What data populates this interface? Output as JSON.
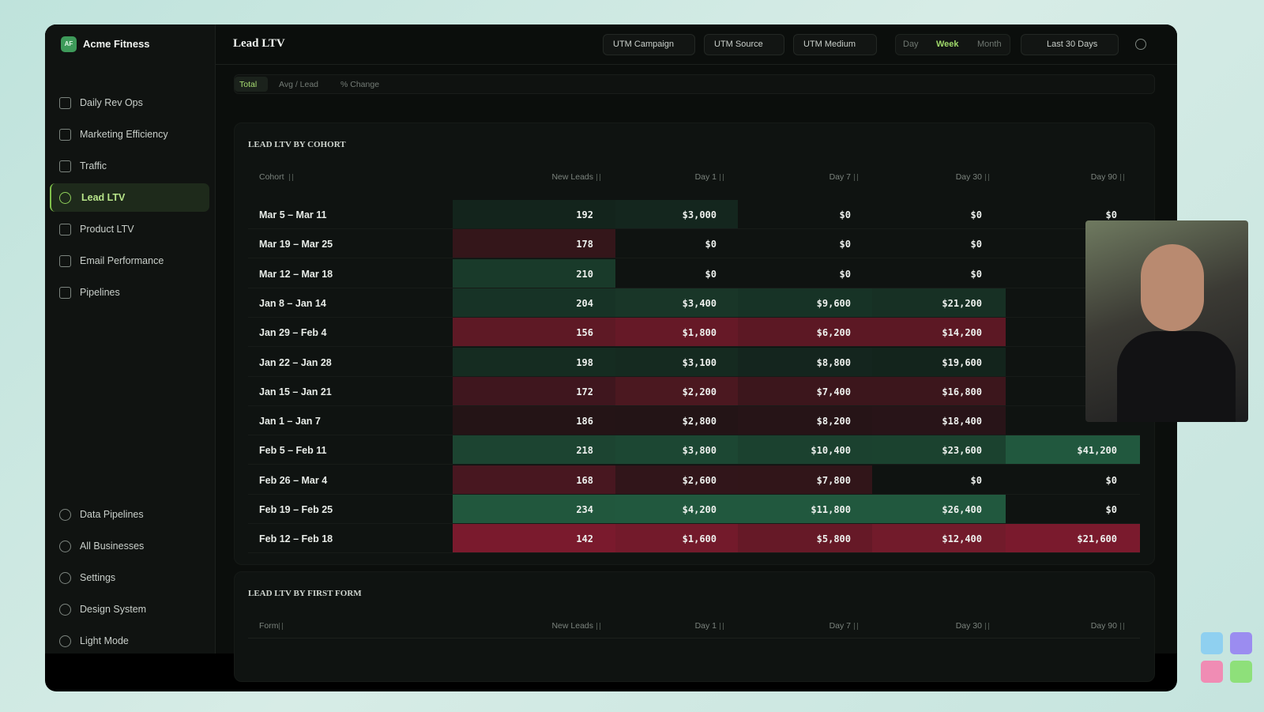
{
  "sidebar": {
    "brand_initials": "AF",
    "brand": "Acme Fitness",
    "nav": [
      "Daily Rev Ops",
      "Marketing Efficiency",
      "Traffic",
      "Lead LTV",
      "Product LTV",
      "Email Performance",
      "Pipelines"
    ],
    "active": 3,
    "footer_nav": [
      "Data Pipelines",
      "All Businesses",
      "Settings",
      "Design System",
      "Light Mode"
    ]
  },
  "header": {
    "title": "Lead LTV",
    "filters": [
      "UTM Campaign",
      "UTM Source",
      "UTM Medium"
    ],
    "periods": [
      "Day",
      "Week",
      "Month"
    ],
    "active_period": 1,
    "date_range": "Last 30 Days"
  },
  "tabs": {
    "items": [
      "Total",
      "Avg / Lead",
      "% Change"
    ],
    "active": 0
  },
  "cohort_table": {
    "title": "LEAD LTV BY COHORT",
    "columns": [
      "Cohort",
      "New Leads",
      "Day 1",
      "Day 7",
      "Day 30",
      "Day 90"
    ],
    "rows": [
      [
        "Mar 5 – Mar 11",
        "192",
        "$3,000",
        "$0",
        "$0",
        "$0"
      ],
      [
        "Mar 19 – Mar 25",
        "178",
        "$0",
        "$0",
        "$0",
        null
      ],
      [
        "Mar 12 – Mar 18",
        "210",
        "$0",
        "$0",
        "$0",
        null
      ],
      [
        "Jan 8 – Jan 14",
        "204",
        "$3,400",
        "$9,600",
        "$21,200",
        null
      ],
      [
        "Jan 29 – Feb 4",
        "156",
        "$1,800",
        "$6,200",
        "$14,200",
        null
      ],
      [
        "Jan 22 – Jan 28",
        "198",
        "$3,100",
        "$8,800",
        "$19,600",
        null
      ],
      [
        "Jan 15 – Jan 21",
        "172",
        "$2,200",
        "$7,400",
        "$16,800",
        null
      ],
      [
        "Jan 1 – Jan 7",
        "186",
        "$2,800",
        "$8,200",
        "$18,400",
        null
      ],
      [
        "Feb 5 – Feb 11",
        "218",
        "$3,800",
        "$10,400",
        "$23,600",
        "$41,200"
      ],
      [
        "Feb 26 – Mar 4",
        "168",
        "$2,600",
        "$7,800",
        "$0",
        "$0"
      ],
      [
        "Feb 19 – Feb 25",
        "234",
        "$4,200",
        "$11,800",
        "$26,400",
        "$0"
      ],
      [
        "Feb 12 – Feb 18",
        "142",
        "$1,600",
        "$5,800",
        "$12,400",
        "$21,600"
      ]
    ]
  },
  "form_table": {
    "title": "LEAD LTV BY FIRST FORM",
    "columns": [
      "Form",
      "New Leads",
      "Day 1",
      "Day 7",
      "Day 30",
      "Day 90"
    ]
  }
}
